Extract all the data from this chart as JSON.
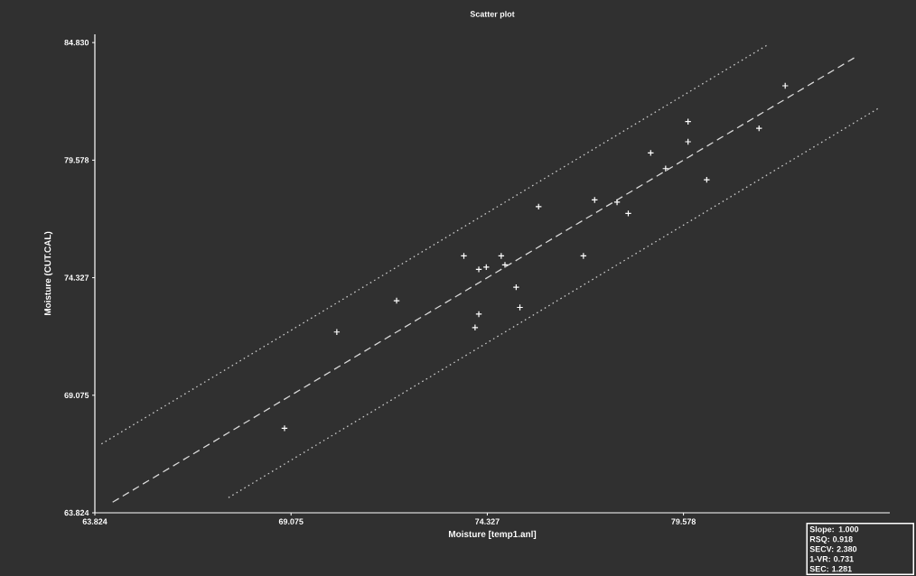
{
  "chart_data": {
    "type": "scatter",
    "title": "Scatter plot",
    "xlabel": "Moisture [temp1.anl]",
    "ylabel": "Moisture (CUT.CAL)",
    "annotations": [
      "Slope: 1.000",
      "RSQ: 0.918",
      "SECV: 2.380",
      "1-VR: 0.731",
      "SEC: 1.281"
    ],
    "xlim": [
      63.824,
      85.1
    ],
    "ylim": [
      63.824,
      85.2
    ],
    "xticks": [
      63.824,
      69.075,
      74.327,
      79.578
    ],
    "yticks": [
      63.824,
      69.075,
      74.327,
      79.578,
      {
        "value": 84.83,
        "label": "84.830"
      }
    ],
    "series": [
      {
        "marker": "cross",
        "color": "#ffffff",
        "x": [
          68.9,
          70.3,
          71.9,
          73.7,
          74.1,
          74.3,
          74.7,
          74.8,
          75.1,
          75.2,
          74.1,
          74.0,
          75.7,
          76.9,
          77.2,
          77.8,
          78.1,
          78.7,
          79.1,
          79.7,
          79.7,
          80.2,
          81.6,
          82.3
        ],
        "values": [
          67.6,
          71.9,
          73.3,
          75.3,
          74.7,
          74.8,
          75.3,
          74.9,
          73.9,
          73.0,
          72.7,
          72.1,
          77.5,
          75.3,
          77.8,
          77.7,
          77.2,
          79.9,
          79.2,
          81.3,
          80.4,
          78.7,
          81.0,
          82.9
        ]
      },
      {
        "type": "line",
        "line_style": "dashed",
        "color": "#d8d8d8",
        "x": [
          64.3,
          84.2
        ],
        "values": [
          64.3,
          84.2
        ]
      },
      {
        "type": "line",
        "line_style": "dotted",
        "color": "#c8c8c8",
        "x": [
          64.0,
          81.8
        ],
        "values": [
          66.9,
          84.7
        ]
      },
      {
        "type": "line",
        "line_style": "dotted",
        "color": "#c8c8c8",
        "x": [
          67.4,
          84.8
        ],
        "values": [
          64.5,
          81.9
        ]
      }
    ]
  }
}
